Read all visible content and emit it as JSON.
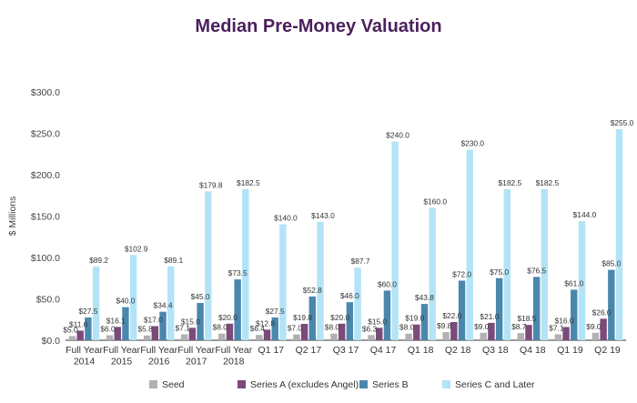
{
  "chart_data": {
    "type": "bar",
    "title": "Median Pre-Money Valuation",
    "xlabel": "",
    "ylabel": "$ Millions",
    "ylim": [
      0,
      300
    ],
    "yticks": [
      0,
      50,
      100,
      150,
      200,
      250,
      300
    ],
    "ytick_labels": [
      "$0.0",
      "$50.0",
      "$100.0",
      "$150.0",
      "$200.0",
      "$250.0",
      "$300.0"
    ],
    "grid": false,
    "legend_position": "bottom",
    "categories": [
      [
        "Full Year",
        "2014"
      ],
      [
        "Full Year",
        "2015"
      ],
      [
        "Full Year",
        "2016"
      ],
      [
        "Full Year",
        "2017"
      ],
      [
        "Full Year",
        "2018"
      ],
      [
        "Q1 17"
      ],
      [
        "Q2 17"
      ],
      [
        "Q3 17"
      ],
      [
        "Q4 17"
      ],
      [
        "Q1 18"
      ],
      [
        "Q2 18"
      ],
      [
        "Q3 18"
      ],
      [
        "Q4 18"
      ],
      [
        "Q1 19"
      ],
      [
        "Q2 19"
      ]
    ],
    "series": [
      {
        "name": "Seed",
        "color": "#b1b1b1",
        "values": [
          5.0,
          6.0,
          5.8,
          7.1,
          8.0,
          6.4,
          7.0,
          8.0,
          6.3,
          8.0,
          9.8,
          9.0,
          8.7,
          7.1,
          9.0
        ],
        "labels": [
          "$5.0",
          "$6.0",
          "$5.8",
          "$7.1",
          "$8.0",
          "$6.4",
          "$7.0",
          "$8.0",
          "$6.3",
          "$8.0",
          "$9.8",
          "$9.0",
          "$8.7",
          "$7.1",
          "$9.0"
        ]
      },
      {
        "name": "Series A (excludes Angel)",
        "color": "#7a4a7a",
        "values": [
          11.6,
          16.1,
          17.0,
          15.0,
          20.0,
          12.8,
          19.8,
          20.0,
          15.0,
          19.0,
          22.0,
          21.0,
          18.5,
          16.0,
          26.0
        ],
        "labels": [
          "$11.6",
          "$16.1",
          "$17.0",
          "$15.0",
          "$20.0",
          "$12.8",
          "$19.8",
          "$20.0",
          "$15.0",
          "$19.0",
          "$22.0",
          "$21.0",
          "$18.5",
          "$16.0",
          "$26.0"
        ]
      },
      {
        "name": "Series B",
        "color": "#4a87ad",
        "values": [
          27.5,
          40.0,
          34.4,
          45.0,
          73.5,
          27.5,
          52.8,
          46.0,
          60.0,
          43.8,
          72.0,
          75.0,
          76.5,
          61.0,
          85.0
        ],
        "labels": [
          "$27.5",
          "$40.0",
          "$34.4",
          "$45.0",
          "$73.5",
          "$27.5",
          "$52.8",
          "$46.0",
          "$60.0",
          "$43.8",
          "$72.0",
          "$75.0",
          "$76.5",
          "$61.0",
          "$85.0"
        ]
      },
      {
        "name": "Series C and Later",
        "color": "#b3e3f6",
        "values": [
          89.2,
          102.9,
          89.1,
          179.8,
          182.5,
          140.0,
          143.0,
          87.7,
          240.0,
          160.0,
          230.0,
          182.5,
          182.5,
          144.0,
          255.0
        ],
        "labels": [
          "$89.2",
          "$102.9",
          "$89.1",
          "$179.8",
          "$182.5",
          "$140.0",
          "$143.0",
          "$87.7",
          "$240.0",
          "$160.0",
          "$230.0",
          "$182.5",
          "$182.5",
          "$144.0",
          "$255.0"
        ]
      }
    ]
  }
}
